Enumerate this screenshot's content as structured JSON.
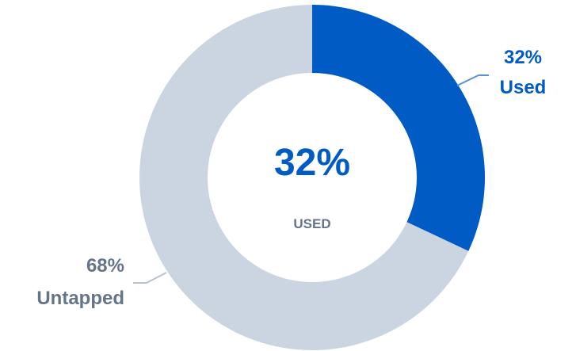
{
  "chart_data": {
    "type": "pie",
    "variant": "donut",
    "categories": [
      "Used",
      "Untapped"
    ],
    "values": [
      32,
      68
    ],
    "colors": [
      "#005BC4",
      "#CBD5E1"
    ],
    "label_colors": [
      "#005BC4",
      "#64748B"
    ],
    "slice_labels": [
      {
        "percent": "32%",
        "name": "Used"
      },
      {
        "percent": "68%",
        "name": "Untapped"
      }
    ],
    "center": {
      "value": "32%",
      "caption": "USED",
      "value_color": "#005BC4",
      "caption_color": "#64748B"
    },
    "legend": "none"
  }
}
